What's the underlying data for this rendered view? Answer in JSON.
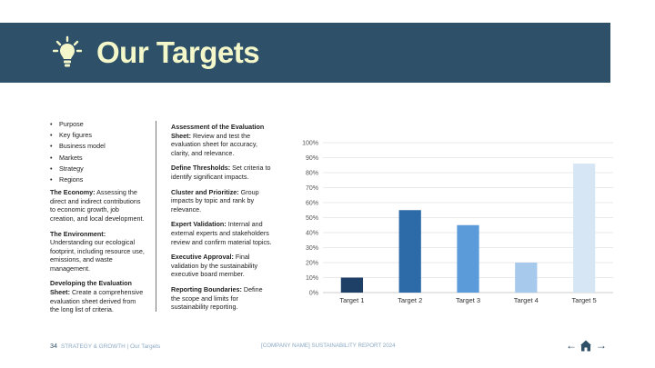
{
  "header": {
    "title": "Our Targets",
    "icon": "lightbulb-icon",
    "background": "#2e5069",
    "title_color": "#f3f7c9"
  },
  "left_column": {
    "bullets": [
      "Purpose",
      "Key figures",
      "Business model",
      "Markets",
      "Strategy",
      "Regions"
    ],
    "paragraphs": [
      {
        "heading": "The Economy:",
        "text": " Assessing the direct and indirect contributions to economic growth, job creation, and local development."
      },
      {
        "heading": "The Environment:",
        "text": " Understanding our ecological footprint, including resource use, emissions, and waste management."
      },
      {
        "heading": "Developing the Evaluation Sheet:",
        "text": " Create a comprehensive evaluation sheet derived from the long list of criteria."
      }
    ]
  },
  "middle_column": {
    "paragraphs": [
      {
        "heading": "Assessment of the Evaluation Sheet:",
        "text": " Review and test the evaluation sheet for accuracy, clarity, and relevance."
      },
      {
        "heading": "Define Thresholds:",
        "text": " Set criteria to identify significant impacts."
      },
      {
        "heading": "Cluster and Prioritize:",
        "text": " Group impacts by topic and rank by relevance."
      },
      {
        "heading": "Expert Validation:",
        "text": " Internal and external experts and stakeholders review and confirm material topics."
      },
      {
        "heading": "Executive Approval:",
        "text": " Final validation by the sustainability executive board member."
      },
      {
        "heading": "Reporting Boundaries:",
        "text": " Define the scope and limits for sustainability reporting."
      }
    ]
  },
  "chart_data": {
    "type": "bar",
    "categories": [
      "Target 1",
      "Target 2",
      "Target 3",
      "Target 4",
      "Target 5"
    ],
    "values": [
      10,
      55,
      45,
      20,
      86
    ],
    "colors": [
      "#1e3f66",
      "#2c6aa8",
      "#5b9bd9",
      "#a6c9ec",
      "#d6e6f5"
    ],
    "ylim": [
      0,
      100
    ],
    "yticks": [
      "0%",
      "10%",
      "20%",
      "30%",
      "40%",
      "50%",
      "60%",
      "70%",
      "80%",
      "90%",
      "100%"
    ],
    "grid": true,
    "title": "",
    "xlabel": "",
    "ylabel": ""
  },
  "footer": {
    "page_number": "34",
    "section": "STRATEGY & GROWTH | Our Targets",
    "center": "[COMPANY NAME] SUSTAINABILITY REPORT 2024",
    "nav_prev": "←",
    "nav_next": "→"
  }
}
